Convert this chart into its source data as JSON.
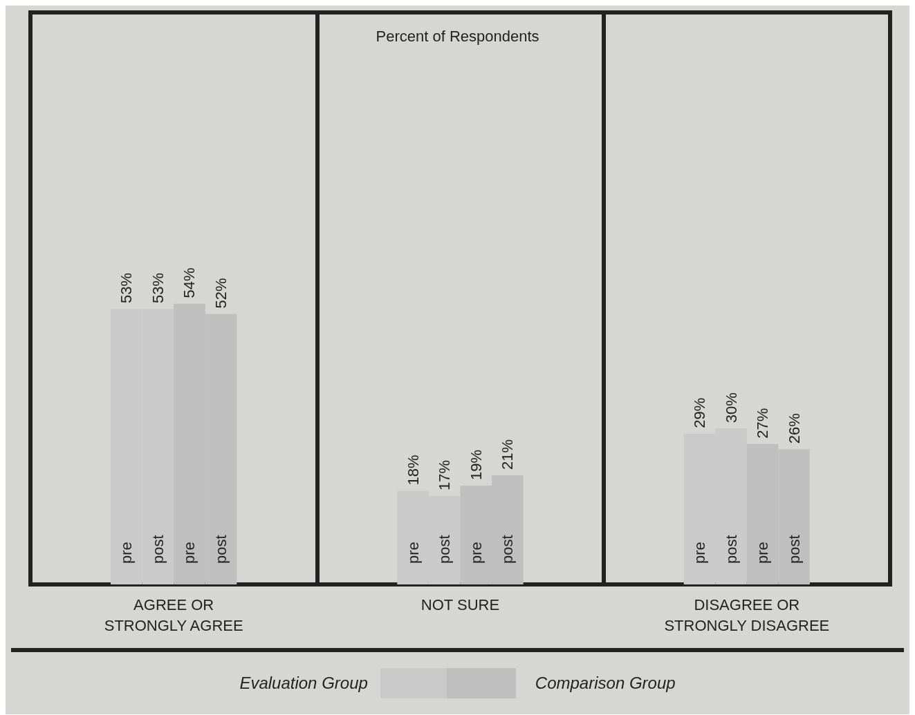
{
  "chart_data": {
    "type": "bar",
    "title": "Percent of Respondents",
    "categories": [
      "AGREE OR\nSTRONGLY AGREE",
      "NOT SURE",
      "DISAGREE OR\nSTRONGLY DISAGREE"
    ],
    "series": [
      {
        "name": "pre",
        "color": "#cacaca",
        "values": [
          53,
          18,
          29
        ],
        "value_labels": [
          "53%",
          "18%",
          "29%"
        ]
      },
      {
        "name": "post",
        "color": "#cacaca",
        "values": [
          53,
          17,
          30
        ],
        "value_labels": [
          "53%",
          "17%",
          "30%"
        ]
      },
      {
        "name": "pre",
        "color": "#bfbfbf",
        "values": [
          54,
          19,
          27
        ],
        "value_labels": [
          "54%",
          "19%",
          "27%"
        ]
      },
      {
        "name": "post",
        "color": "#bfbfbf",
        "values": [
          52,
          21,
          26
        ],
        "value_labels": [
          "52%",
          "21%",
          "26%"
        ]
      }
    ],
    "ylim": [
      0,
      110
    ],
    "tick_labels": "x",
    "grid": "x",
    "legend": "bottom",
    "annotations": [
      "Evaluation Group",
      "Comparison Group"
    ]
  }
}
